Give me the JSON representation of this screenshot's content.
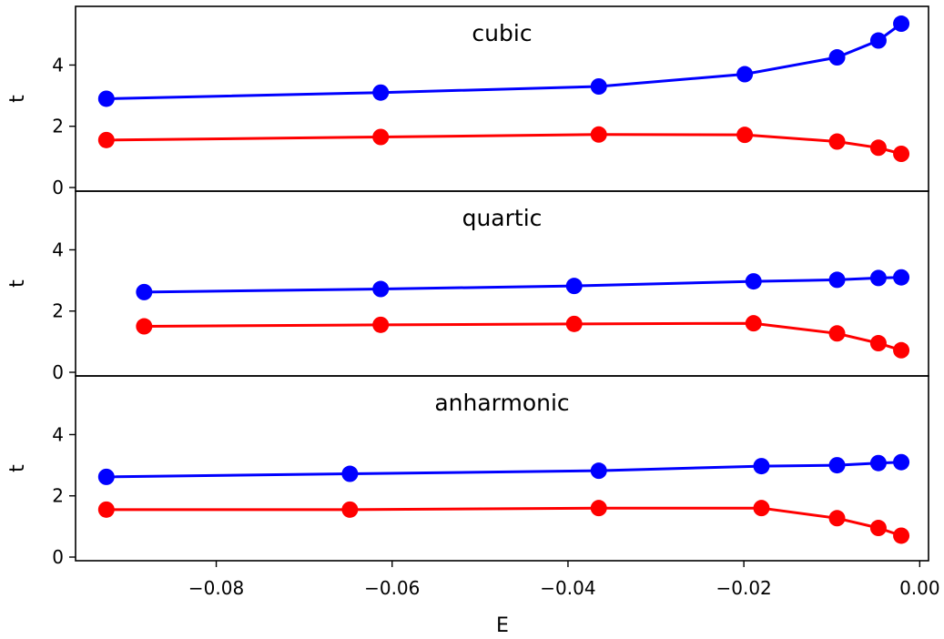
{
  "chart_data": {
    "type": "line",
    "xlabel": "E",
    "xlim": [
      -0.096,
      0.001
    ],
    "ylim": [
      0,
      5.5
    ],
    "x_ticks": [
      -0.08,
      -0.06,
      -0.04,
      -0.02,
      0.0
    ],
    "x_tick_labels": [
      "−0.08",
      "−0.06",
      "−0.04",
      "−0.02",
      "0.00"
    ],
    "y_ticks": [
      0,
      2,
      4
    ],
    "y_tick_labels": [
      "0",
      "2",
      "4"
    ],
    "colors": {
      "series_1": "#0000ff",
      "series_2": "#ff0000"
    },
    "panels": [
      {
        "title": "cubic",
        "ylabel": "t",
        "series": [
          {
            "color": "#0000ff",
            "x": [
              -0.0925,
              -0.0613,
              -0.0365,
              -0.0199,
              -0.0094,
              -0.0047,
              -0.0021
            ],
            "y": [
              2.9,
              3.1,
              3.3,
              3.7,
              4.25,
              4.8,
              5.35
            ]
          },
          {
            "color": "#ff0000",
            "x": [
              -0.0925,
              -0.0613,
              -0.0365,
              -0.0199,
              -0.0094,
              -0.0047,
              -0.0021
            ],
            "y": [
              1.55,
              1.65,
              1.73,
              1.72,
              1.5,
              1.3,
              1.1
            ]
          }
        ]
      },
      {
        "title": "quartic",
        "ylabel": "t",
        "series": [
          {
            "color": "#0000ff",
            "x": [
              -0.0882,
              -0.0613,
              -0.0393,
              -0.0189,
              -0.0094,
              -0.0047,
              -0.0021
            ],
            "y": [
              2.62,
              2.72,
              2.82,
              2.97,
              3.02,
              3.08,
              3.1
            ]
          },
          {
            "color": "#ff0000",
            "x": [
              -0.0882,
              -0.0613,
              -0.0393,
              -0.0189,
              -0.0094,
              -0.0047,
              -0.0021
            ],
            "y": [
              1.5,
              1.55,
              1.58,
              1.6,
              1.27,
              0.95,
              0.72
            ]
          }
        ]
      },
      {
        "title": "anharmonic",
        "ylabel": "t",
        "series": [
          {
            "color": "#0000ff",
            "x": [
              -0.0925,
              -0.0648,
              -0.0365,
              -0.018,
              -0.0094,
              -0.0047,
              -0.0021
            ],
            "y": [
              2.62,
              2.72,
              2.82,
              2.97,
              3.0,
              3.07,
              3.1
            ]
          },
          {
            "color": "#ff0000",
            "x": [
              -0.0925,
              -0.0648,
              -0.0365,
              -0.018,
              -0.0094,
              -0.0047,
              -0.0021
            ],
            "y": [
              1.55,
              1.55,
              1.6,
              1.6,
              1.27,
              0.95,
              0.7
            ]
          }
        ]
      }
    ]
  }
}
